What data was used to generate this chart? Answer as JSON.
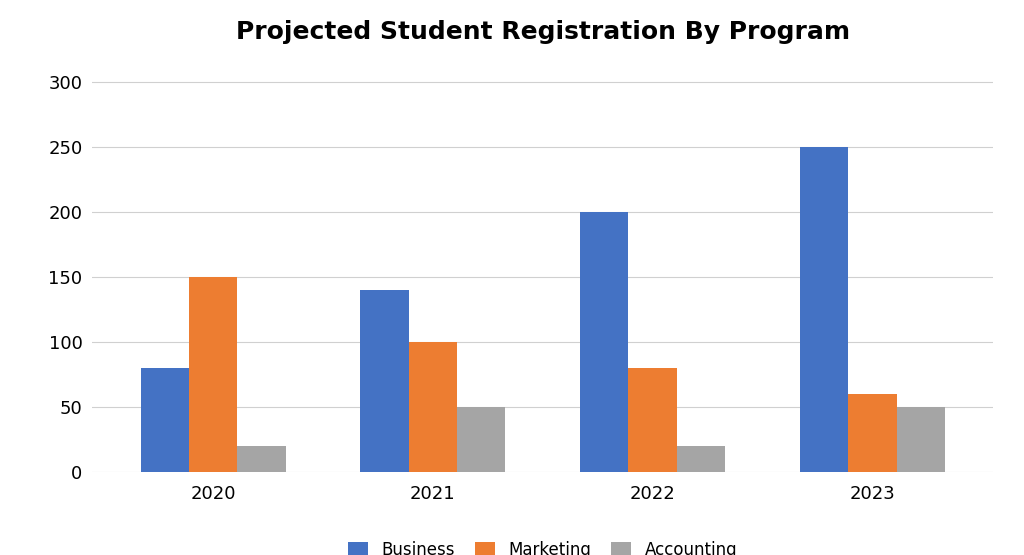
{
  "title": "Projected Student Registration By Program",
  "categories": [
    "2020",
    "2021",
    "2022",
    "2023"
  ],
  "series": {
    "Business": [
      80,
      140,
      200,
      250
    ],
    "Marketing": [
      150,
      100,
      80,
      60
    ],
    "Accounting": [
      20,
      50,
      20,
      50
    ]
  },
  "colors": {
    "Business": "#4472C4",
    "Marketing": "#ED7D31",
    "Accounting": "#A5A5A5"
  },
  "ylim": [
    0,
    320
  ],
  "yticks": [
    0,
    50,
    100,
    150,
    200,
    250,
    300
  ],
  "bar_width": 0.22,
  "background_color": "#FFFFFF",
  "grid_color": "#D0D0D0",
  "title_fontsize": 18,
  "tick_fontsize": 13,
  "legend_fontsize": 12
}
